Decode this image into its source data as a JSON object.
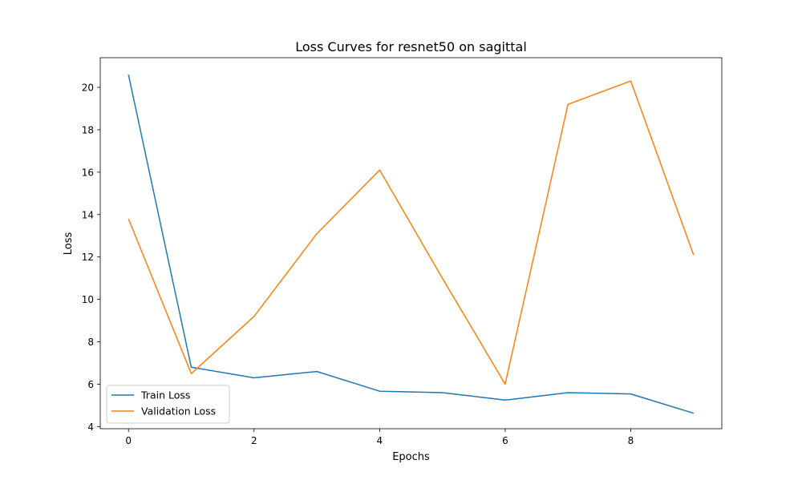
{
  "chart_data": {
    "type": "line",
    "title": "Loss Curves for resnet50 on sagittal",
    "xlabel": "Epochs",
    "ylabel": "Loss",
    "x": [
      0,
      1,
      2,
      3,
      4,
      5,
      6,
      7,
      8,
      9
    ],
    "xlim": [
      -0.45,
      9.45
    ],
    "ylim": [
      3.9,
      21.4
    ],
    "xticks": [
      0,
      2,
      4,
      6,
      8
    ],
    "yticks": [
      4,
      6,
      8,
      10,
      12,
      14,
      16,
      18,
      20
    ],
    "grid": false,
    "legend_position": "lower-left",
    "series": [
      {
        "name": "Train Loss",
        "color": "#1f77b4",
        "values": [
          20.6,
          6.8,
          6.3,
          6.6,
          5.67,
          5.6,
          5.25,
          5.6,
          5.54,
          4.63
        ]
      },
      {
        "name": "Validation Loss",
        "color": "#ff7f0e",
        "values": [
          13.8,
          6.5,
          9.2,
          13.1,
          16.1,
          11.0,
          6.0,
          19.2,
          20.3,
          12.1
        ]
      }
    ]
  }
}
